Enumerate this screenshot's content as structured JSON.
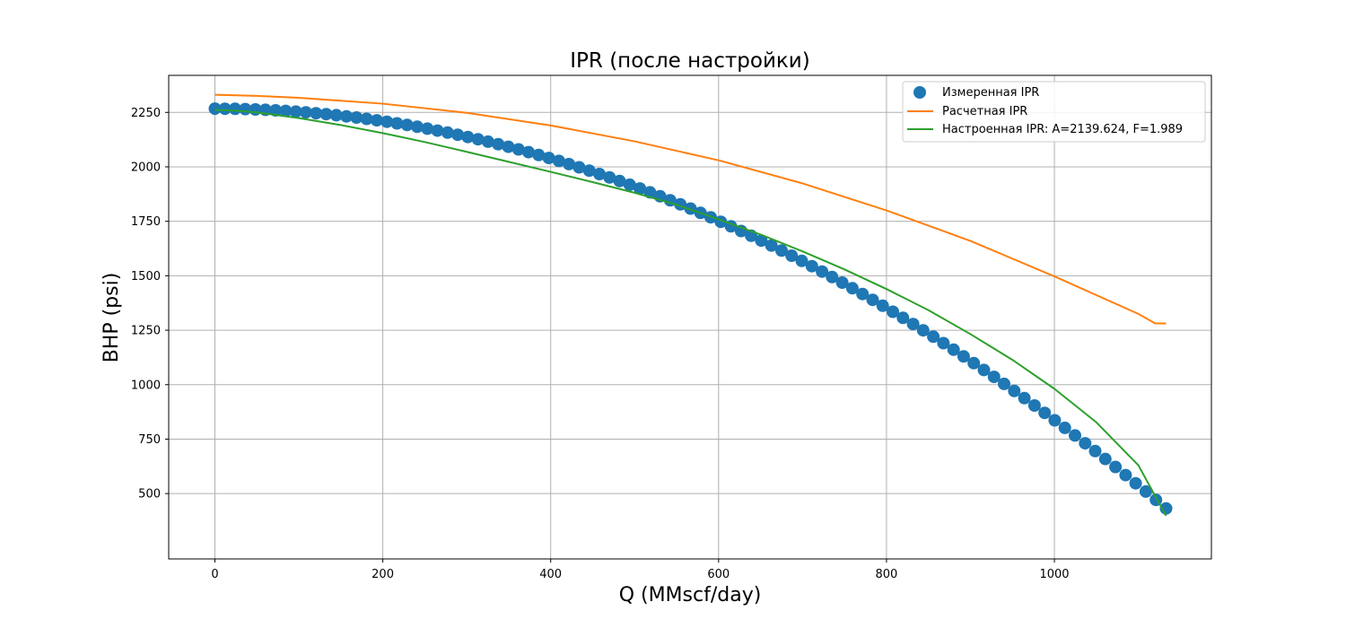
{
  "chart_data": {
    "type": "line",
    "title": "IPR (после настройки)",
    "xlabel": "Q (MMscf/day)",
    "ylabel": "BHP (psi)",
    "xlim": [
      -55,
      1187
    ],
    "ylim": [
      200,
      2420
    ],
    "xticks": [
      0,
      200,
      400,
      600,
      800,
      1000
    ],
    "yticks": [
      500,
      750,
      1000,
      1250,
      1500,
      1750,
      2000,
      2250
    ],
    "grid": true,
    "legend_position": "top-right",
    "series": [
      {
        "name": "Измеренная IPR",
        "kind": "scatter",
        "color": "#1f77b4",
        "params": {
          "p_res": 2267,
          "p_min": 432,
          "q_max": 1133,
          "n": 95
        }
      },
      {
        "name": "Расчетная IPR",
        "kind": "line",
        "color": "#ff7f0e",
        "x": [
          0,
          50,
          100,
          200,
          300,
          400,
          500,
          600,
          700,
          800,
          900,
          1000,
          1100,
          1120,
          1133
        ],
        "y": [
          2331,
          2326,
          2317,
          2290,
          2248,
          2190,
          2117,
          2030,
          1924,
          1800,
          1660,
          1497,
          1325,
          1281,
          1281
        ]
      },
      {
        "name": "Настроенная IPR: A=2139.624, F=1.989",
        "kind": "line",
        "color": "#2ca02c",
        "x": [
          0,
          25,
          50,
          100,
          150,
          200,
          250,
          300,
          350,
          400,
          450,
          500,
          550,
          600,
          650,
          700,
          750,
          800,
          850,
          900,
          950,
          1000,
          1050,
          1100,
          1133
        ],
        "y": [
          2262,
          2258,
          2250,
          2224,
          2192,
          2155,
          2114,
          2069,
          2023,
          1977,
          1930,
          1881,
          1826,
          1759,
          1689,
          1612,
          1529,
          1439,
          1342,
          1232,
          1114,
          981,
          827,
          630,
          398
        ]
      }
    ]
  }
}
